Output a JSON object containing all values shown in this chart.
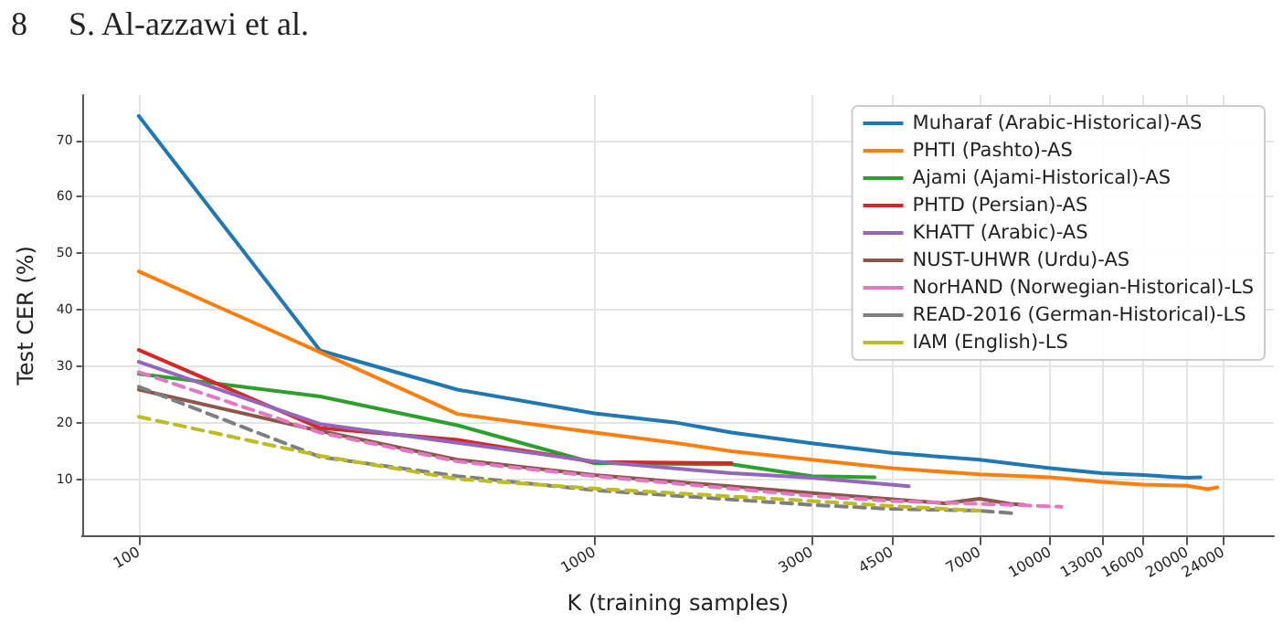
{
  "chart_data": {
    "type": "line",
    "annotations": [
      "8     S. Al-azzawi et al."
    ],
    "xlabel": "K (training samples)",
    "ylabel": "Test CER (%)",
    "log": "x",
    "grid": true,
    "legend": "top right",
    "marker": "none",
    "xlim": [
      75,
      31000
    ],
    "xticks": [
      100,
      1000,
      3000,
      4500,
      7000,
      10000,
      13000,
      16000,
      20000,
      24000
    ],
    "ylim": [
      0,
      78
    ],
    "yticks": [
      10,
      20,
      30,
      40,
      50,
      60,
      70
    ],
    "series": [
      {
        "name": "Muharaf (Arabic-Historical)-AS",
        "color": "#1f77b4",
        "line_style": "solid",
        "x": [
          100,
          250,
          500,
          1000,
          1500,
          2000,
          3000,
          4500,
          7000,
          10000,
          13000,
          16000,
          20000,
          21400
        ],
        "values": [
          74.3,
          32.8,
          25.9,
          21.7,
          20.1,
          18.3,
          16.4,
          14.7,
          13.5,
          12.0,
          11.1,
          10.8,
          10.3,
          10.4
        ]
      },
      {
        "name": "PHTI (Pashto)-AS",
        "color": "#ff7f0e",
        "line_style": "solid",
        "x": [
          100,
          250,
          500,
          1000,
          1500,
          2000,
          3000,
          4500,
          7000,
          10000,
          13000,
          16000,
          20000,
          22200,
          23300
        ],
        "values": [
          46.8,
          32.5,
          21.6,
          18.3,
          16.5,
          15.0,
          13.5,
          12.0,
          10.9,
          10.4,
          9.6,
          9.1,
          8.9,
          8.3,
          8.6
        ]
      },
      {
        "name": "Ajami (Ajami-Historical)-AS",
        "color": "#2ca02c",
        "line_style": "solid",
        "x": [
          100,
          250,
          500,
          1000,
          2000,
          3000,
          4120
        ],
        "values": [
          28.7,
          24.7,
          19.6,
          12.9,
          12.7,
          10.6,
          10.4
        ]
      },
      {
        "name": "PHTD (Persian)-AS",
        "color": "#d62728",
        "line_style": "solid",
        "x": [
          100,
          250,
          500,
          1000,
          2000
        ],
        "values": [
          32.9,
          19.1,
          17.0,
          13.1,
          12.9
        ]
      },
      {
        "name": "KHATT (Arabic)-AS",
        "color": "#9467bd",
        "line_style": "solid",
        "x": [
          100,
          250,
          500,
          1000,
          2000,
          3000,
          4900
        ],
        "values": [
          30.8,
          19.8,
          16.5,
          13.2,
          11.1,
          10.3,
          8.8
        ]
      },
      {
        "name": "NUST-UHWR (Urdu)-AS",
        "color": "#8c564b",
        "line_style": "solid",
        "x": [
          100,
          250,
          500,
          1000,
          3000,
          4500,
          5880,
          7000,
          8170,
          8780
        ],
        "values": [
          25.9,
          18.6,
          13.5,
          10.8,
          7.6,
          6.5,
          5.8,
          6.6,
          5.7,
          5.5
        ]
      },
      {
        "name": "NorHAND (Norwegian-Historical)-LS",
        "color": "#e377c2",
        "line_style": "dashed",
        "x": [
          100,
          250,
          500,
          1000,
          3000,
          4500,
          7000,
          10600
        ],
        "values": [
          29.0,
          18.3,
          13.2,
          10.6,
          7.1,
          6.2,
          5.7,
          5.2
        ]
      },
      {
        "name": "READ-2016 (German-Historical)-LS",
        "color": "#7f7f7f",
        "line_style": "dashed",
        "x": [
          100,
          250,
          500,
          1000,
          3000,
          4500,
          7000,
          8340
        ],
        "values": [
          26.4,
          14.0,
          10.6,
          8.1,
          5.5,
          4.8,
          4.5,
          4.0
        ]
      },
      {
        "name": "IAM (English)-LS",
        "color": "#bcbd22",
        "line_style": "dashed",
        "x": [
          100,
          250,
          500,
          1000,
          3000,
          4500,
          7000
        ],
        "values": [
          21.1,
          14.2,
          10.1,
          8.4,
          6.2,
          5.3,
          4.5
        ]
      }
    ]
  }
}
